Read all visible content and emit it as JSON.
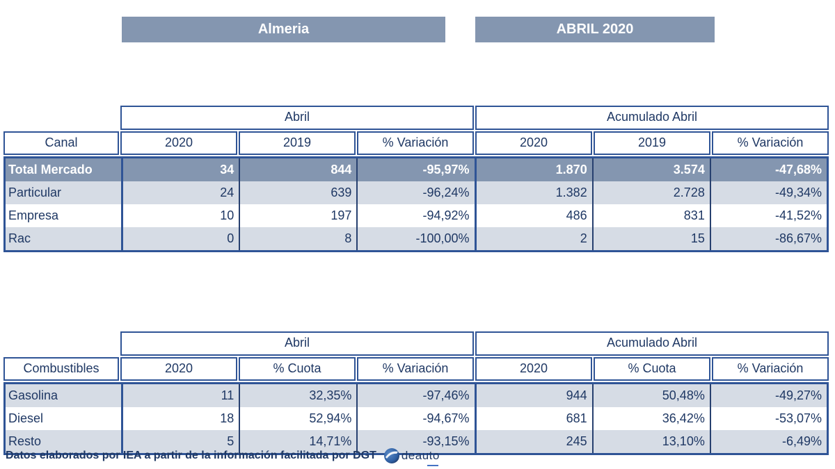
{
  "page": {
    "region_label": "Almeria",
    "period_label": "ABRIL 2020",
    "footer_text": "Datos elaborados por IEA a partir de la información facilitada por DGT",
    "logo_text": "deauto"
  },
  "colors": {
    "header_bar_bg": "#8496B0",
    "total_row_bg": "#8496B0",
    "stripe_row_bg": "#D6DCE5",
    "border_blue": "#2F5496",
    "text_navy": "#1F3864"
  },
  "tables": [
    {
      "row_header": "Canal",
      "groups": [
        "Abril",
        "Acumulado Abril"
      ],
      "columns": [
        "2020",
        "2019",
        "% Variación",
        "2020",
        "2019",
        "% Variación"
      ],
      "rows": [
        {
          "label": "Total Mercado",
          "is_total": true,
          "values": [
            "34",
            "844",
            "-95,97%",
            "1.870",
            "3.574",
            "-47,68%"
          ]
        },
        {
          "label": "Particular",
          "values": [
            "24",
            "639",
            "-96,24%",
            "1.382",
            "2.728",
            "-49,34%"
          ]
        },
        {
          "label": "Empresa",
          "values": [
            "10",
            "197",
            "-94,92%",
            "486",
            "831",
            "-41,52%"
          ]
        },
        {
          "label": "Rac",
          "values": [
            "0",
            "8",
            "-100,00%",
            "2",
            "15",
            "-86,67%"
          ]
        }
      ]
    },
    {
      "row_header": "Combustibles",
      "groups": [
        "Abril",
        "Acumulado Abril"
      ],
      "columns": [
        "2020",
        "% Cuota",
        "% Variación",
        "2020",
        "% Cuota",
        "% Variación"
      ],
      "rows": [
        {
          "label": "Gasolina",
          "values": [
            "11",
            "32,35%",
            "-97,46%",
            "944",
            "50,48%",
            "-49,27%"
          ]
        },
        {
          "label": "Diesel",
          "values": [
            "18",
            "52,94%",
            "-94,67%",
            "681",
            "36,42%",
            "-53,07%"
          ]
        },
        {
          "label": "Resto",
          "values": [
            "5",
            "14,71%",
            "-93,15%",
            "245",
            "13,10%",
            "-6,49%"
          ]
        }
      ]
    }
  ]
}
